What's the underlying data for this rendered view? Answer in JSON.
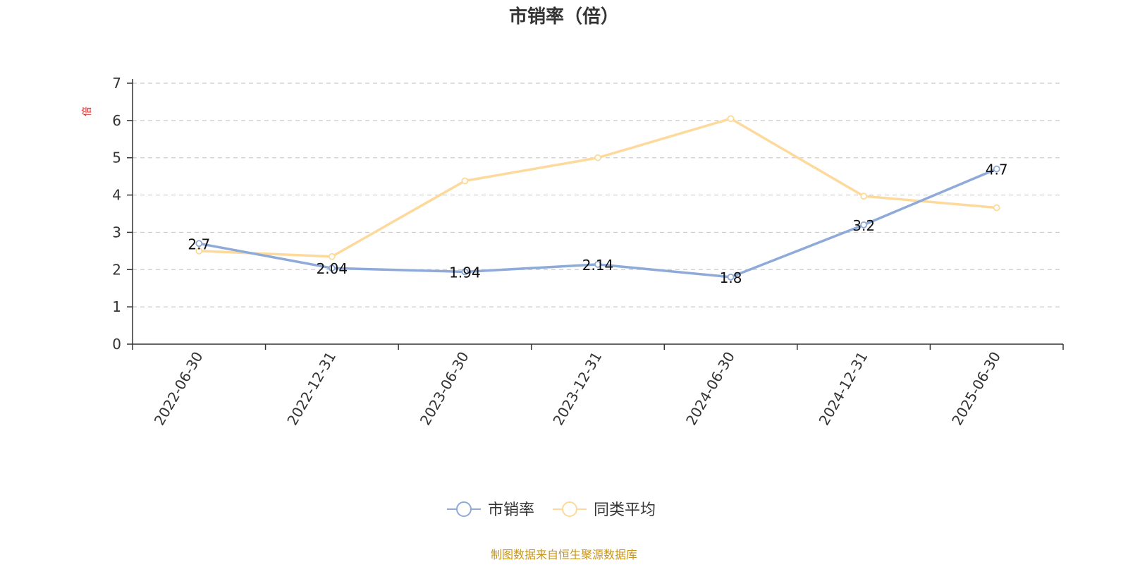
{
  "chart_data": {
    "type": "line",
    "title": "市销率（倍）",
    "ylabel": "倍",
    "xlabel": "",
    "categories": [
      "2022-06-30",
      "2022-12-31",
      "2023-06-30",
      "2023-12-31",
      "2024-06-30",
      "2024-12-31",
      "2025-06-30"
    ],
    "ylim": [
      0,
      7
    ],
    "yticks": [
      0,
      1,
      2,
      3,
      4,
      5,
      6,
      7
    ],
    "grid": true,
    "legend_position": "bottom-center",
    "series": [
      {
        "name": "市销率",
        "color": "#8eaad8",
        "values": [
          2.7,
          2.04,
          1.94,
          2.14,
          1.8,
          3.2,
          4.7
        ],
        "labels": [
          "2.7",
          "2.04",
          "1.94",
          "2.14",
          "1.8",
          "3.2",
          "4.7"
        ]
      },
      {
        "name": "同类平均",
        "color": "#fdd99b",
        "values": [
          2.5,
          2.35,
          4.38,
          5.0,
          6.05,
          3.97,
          3.66
        ]
      }
    ],
    "source": "制图数据来自恒生聚源数据库",
    "source_color": "#c8961e",
    "unit_color": "#e02020"
  }
}
